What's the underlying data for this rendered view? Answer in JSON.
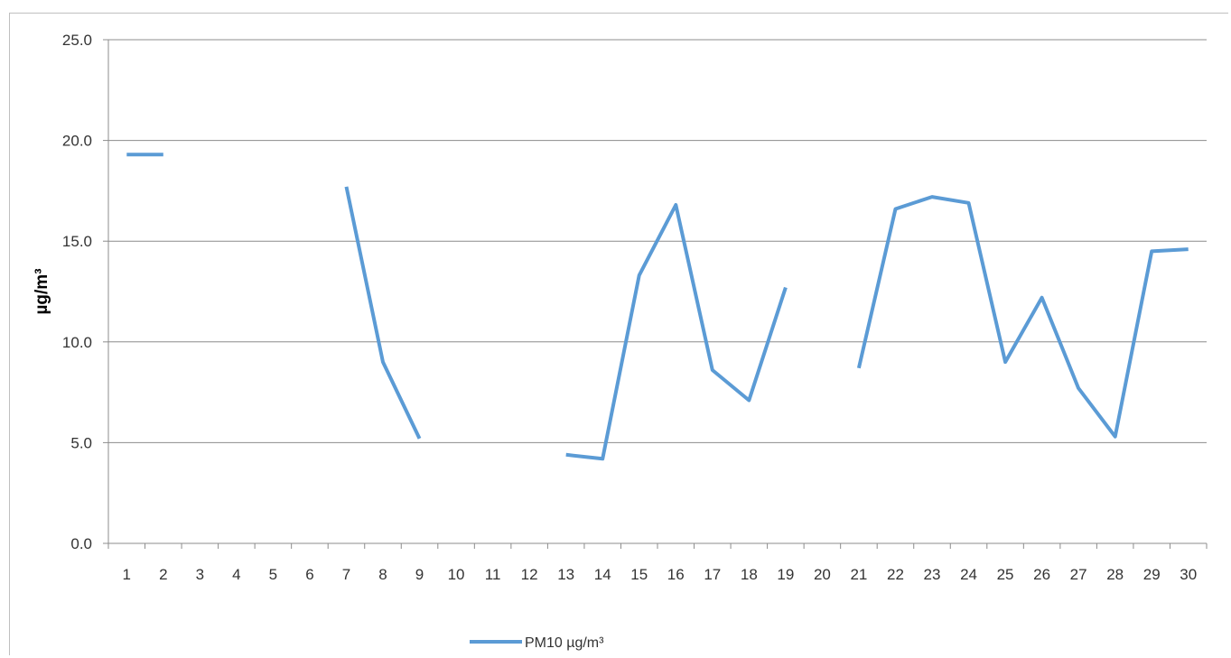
{
  "chart_data": {
    "type": "line",
    "title": "",
    "xlabel": "",
    "ylabel": "µg/m³",
    "ylim": [
      0,
      25
    ],
    "yticks": [
      "0.0",
      "5.0",
      "10.0",
      "15.0",
      "20.0",
      "25.0"
    ],
    "categories": [
      "1",
      "2",
      "3",
      "4",
      "5",
      "6",
      "7",
      "8",
      "9",
      "10",
      "11",
      "12",
      "13",
      "14",
      "15",
      "16",
      "17",
      "18",
      "19",
      "20",
      "21",
      "22",
      "23",
      "24",
      "25",
      "26",
      "27",
      "28",
      "29",
      "30"
    ],
    "grid": "horizontal",
    "legend_position": "bottom",
    "series": [
      {
        "name": "PM10 µg/m³",
        "color": "#5b9bd5",
        "values": [
          19.3,
          19.3,
          null,
          null,
          null,
          null,
          17.7,
          9.0,
          5.2,
          null,
          null,
          null,
          4.4,
          4.2,
          13.3,
          16.8,
          8.6,
          7.1,
          12.7,
          null,
          8.7,
          16.6,
          17.2,
          16.9,
          9.0,
          12.2,
          7.7,
          5.3,
          14.5,
          14.6
        ]
      }
    ]
  }
}
